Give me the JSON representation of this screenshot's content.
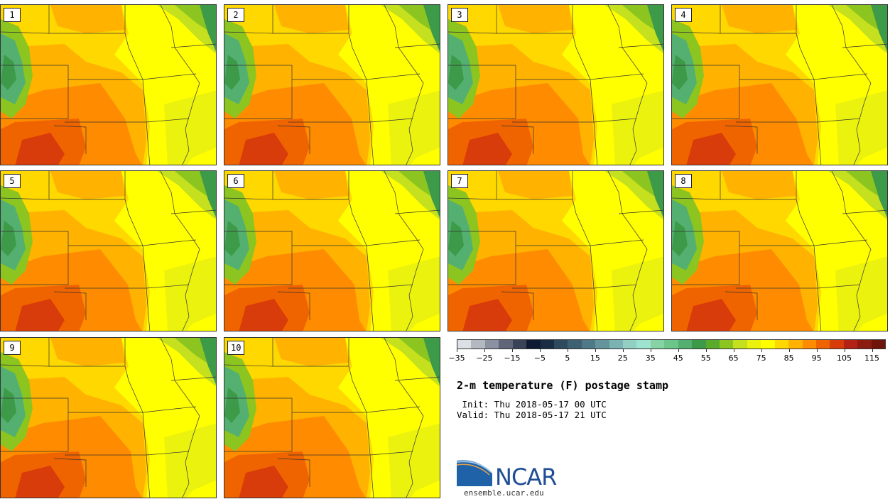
{
  "panels": [
    {
      "label": "1"
    },
    {
      "label": "2"
    },
    {
      "label": "3"
    },
    {
      "label": "4"
    },
    {
      "label": "5"
    },
    {
      "label": "6"
    },
    {
      "label": "7"
    },
    {
      "label": "8"
    },
    {
      "label": "9"
    },
    {
      "label": "10"
    }
  ],
  "colorbar": {
    "colors": [
      "#dcdfe3",
      "#b4b8c1",
      "#8b91a0",
      "#5f6679",
      "#3a4258",
      "#0f1b35",
      "#1a2d45",
      "#2d4a5e",
      "#3e6073",
      "#4f7888",
      "#64959d",
      "#7ab3b1",
      "#93d0c3",
      "#9ee3cf",
      "#86d4a3",
      "#6cc58a",
      "#54b070",
      "#3c9a48",
      "#5aab2a",
      "#8cc520",
      "#c4e01e",
      "#ebf20e",
      "#ffff00",
      "#ffd800",
      "#ffb300",
      "#ff8c00",
      "#f06400",
      "#d93c0b",
      "#b42215",
      "#8c1c10",
      "#6e1408"
    ],
    "ticks": [
      "−35",
      "−25",
      "−15",
      "−5",
      "5",
      "15",
      "25",
      "35",
      "45",
      "55",
      "65",
      "75",
      "85",
      "95",
      "105",
      "115"
    ]
  },
  "title": "2-m temperature (F) postage stamp",
  "init": " Init: Thu 2018-05-17 00 UTC",
  "valid": "Valid: Thu 2018-05-17 21 UTC",
  "logo_text": "NCAR",
  "website": "ensemble.ucar.edu"
}
